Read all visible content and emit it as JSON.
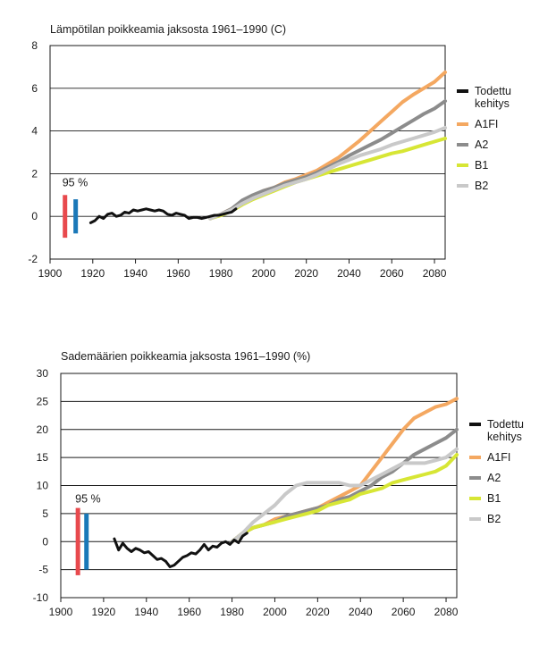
{
  "chart_data": [
    {
      "type": "line",
      "title": "Lämpötilan poikkeamia jaksosta 1961–1990 (C)",
      "xlabel": "",
      "ylabel": "",
      "xlim": [
        1900,
        2085
      ],
      "ylim": [
        -2,
        8
      ],
      "xticks": [
        1900,
        1920,
        1940,
        1960,
        1980,
        2000,
        2020,
        2040,
        2060,
        2080
      ],
      "yticks": [
        -2,
        0,
        2,
        4,
        6,
        8
      ],
      "grid": true,
      "confidence_label": "95 %",
      "confidence_bars": [
        {
          "x": 1907,
          "low": -1.0,
          "high": 1.0,
          "color": "#e8494d"
        },
        {
          "x": 1912,
          "low": -0.8,
          "high": 0.8,
          "color": "#1a78b8"
        }
      ],
      "series": [
        {
          "name": "Todettu kehitys",
          "color": "#111111",
          "width": 3,
          "x": [
            1919,
            1921,
            1923,
            1925,
            1927,
            1929,
            1931,
            1933,
            1935,
            1937,
            1939,
            1941,
            1943,
            1945,
            1947,
            1949,
            1951,
            1953,
            1955,
            1957,
            1959,
            1961,
            1963,
            1965,
            1967,
            1969,
            1971,
            1973,
            1975,
            1977,
            1979,
            1981,
            1983,
            1985,
            1987
          ],
          "y": [
            -0.3,
            -0.2,
            0.0,
            -0.1,
            0.1,
            0.15,
            0.0,
            0.05,
            0.2,
            0.15,
            0.3,
            0.25,
            0.3,
            0.35,
            0.3,
            0.25,
            0.3,
            0.25,
            0.1,
            0.05,
            0.15,
            0.1,
            0.05,
            -0.1,
            -0.05,
            -0.05,
            -0.1,
            -0.05,
            0.0,
            0.05,
            0.05,
            0.1,
            0.15,
            0.2,
            0.35
          ]
        },
        {
          "name": "A1FI",
          "color": "#f4a861",
          "width": 4,
          "x": [
            1975,
            1980,
            1985,
            1990,
            1995,
            2000,
            2005,
            2010,
            2015,
            2020,
            2025,
            2030,
            2035,
            2040,
            2045,
            2050,
            2055,
            2060,
            2065,
            2070,
            2075,
            2080,
            2085
          ],
          "y": [
            -0.1,
            0.1,
            0.35,
            0.7,
            0.95,
            1.2,
            1.35,
            1.6,
            1.75,
            1.95,
            2.15,
            2.45,
            2.75,
            3.15,
            3.55,
            4.0,
            4.45,
            4.9,
            5.35,
            5.7,
            6.0,
            6.3,
            6.75
          ]
        },
        {
          "name": "A2",
          "color": "#8c8c8c",
          "width": 4,
          "x": [
            1975,
            1980,
            1985,
            1990,
            1995,
            2000,
            2005,
            2010,
            2015,
            2020,
            2025,
            2030,
            2035,
            2040,
            2045,
            2050,
            2055,
            2060,
            2065,
            2070,
            2075,
            2080,
            2085
          ],
          "y": [
            -0.1,
            0.1,
            0.35,
            0.75,
            1.0,
            1.2,
            1.35,
            1.55,
            1.7,
            1.85,
            2.05,
            2.3,
            2.55,
            2.85,
            3.1,
            3.35,
            3.6,
            3.9,
            4.2,
            4.5,
            4.8,
            5.05,
            5.4
          ]
        },
        {
          "name": "B1",
          "color": "#d7e635",
          "width": 4,
          "x": [
            1975,
            1980,
            1985,
            1990,
            1995,
            2000,
            2005,
            2010,
            2015,
            2020,
            2025,
            2030,
            2035,
            2040,
            2045,
            2050,
            2055,
            2060,
            2065,
            2070,
            2075,
            2080,
            2085
          ],
          "y": [
            -0.1,
            0.05,
            0.25,
            0.55,
            0.8,
            1.0,
            1.2,
            1.4,
            1.6,
            1.75,
            1.9,
            2.05,
            2.2,
            2.35,
            2.5,
            2.65,
            2.8,
            2.95,
            3.05,
            3.2,
            3.35,
            3.5,
            3.65
          ]
        },
        {
          "name": "B2",
          "color": "#c9c9c9",
          "width": 4,
          "x": [
            1975,
            1980,
            1985,
            1990,
            1995,
            2000,
            2005,
            2010,
            2015,
            2020,
            2025,
            2030,
            2035,
            2040,
            2045,
            2050,
            2055,
            2060,
            2065,
            2070,
            2075,
            2080,
            2085
          ],
          "y": [
            -0.1,
            0.1,
            0.3,
            0.6,
            0.85,
            1.05,
            1.25,
            1.45,
            1.6,
            1.75,
            1.95,
            2.2,
            2.45,
            2.65,
            2.85,
            3.0,
            3.15,
            3.35,
            3.5,
            3.65,
            3.8,
            3.95,
            4.15
          ]
        }
      ]
    },
    {
      "type": "line",
      "title": "Sademäärien poikkeamia jaksosta 1961–1990 (%)",
      "xlabel": "",
      "ylabel": "",
      "xlim": [
        1900,
        2085
      ],
      "ylim": [
        -10,
        30
      ],
      "xticks": [
        1900,
        1920,
        1940,
        1960,
        1980,
        2000,
        2020,
        2040,
        2060,
        2080
      ],
      "yticks": [
        -10,
        -5,
        0,
        5,
        10,
        15,
        20,
        25,
        30
      ],
      "grid": true,
      "confidence_label": "95 %",
      "confidence_bars": [
        {
          "x": 1908,
          "low": -6.0,
          "high": 6.0,
          "color": "#e8494d"
        },
        {
          "x": 1912,
          "low": -5.0,
          "high": 5.0,
          "color": "#1a78b8"
        }
      ],
      "series": [
        {
          "name": "Todettu kehitys",
          "color": "#111111",
          "width": 3,
          "x": [
            1925,
            1927,
            1929,
            1931,
            1933,
            1935,
            1937,
            1939,
            1941,
            1943,
            1945,
            1947,
            1949,
            1951,
            1953,
            1955,
            1957,
            1959,
            1961,
            1963,
            1965,
            1967,
            1969,
            1971,
            1973,
            1975,
            1977,
            1979,
            1981,
            1983,
            1985,
            1987
          ],
          "y": [
            0.5,
            -1.5,
            -0.3,
            -1.2,
            -1.8,
            -1.2,
            -1.5,
            -2.0,
            -1.8,
            -2.5,
            -3.2,
            -3.0,
            -3.5,
            -4.5,
            -4.2,
            -3.5,
            -2.8,
            -2.5,
            -2.0,
            -2.2,
            -1.5,
            -0.5,
            -1.5,
            -0.8,
            -1.0,
            -0.3,
            0.0,
            -0.5,
            0.3,
            -0.2,
            1.0,
            1.5
          ]
        },
        {
          "name": "A1FI",
          "color": "#f4a861",
          "width": 4,
          "x": [
            1980,
            1985,
            1990,
            1995,
            2000,
            2005,
            2010,
            2015,
            2020,
            2025,
            2030,
            2035,
            2040,
            2045,
            2050,
            2055,
            2060,
            2065,
            2070,
            2075,
            2080,
            2085
          ],
          "y": [
            0.0,
            1.5,
            2.5,
            3.0,
            4.0,
            4.5,
            5.0,
            5.5,
            6.0,
            7.0,
            8.0,
            9.0,
            10.0,
            12.5,
            15.0,
            17.5,
            20.0,
            22.0,
            23.0,
            24.0,
            24.5,
            25.5
          ]
        },
        {
          "name": "A2",
          "color": "#8c8c8c",
          "width": 4,
          "x": [
            1980,
            1985,
            1990,
            1995,
            2000,
            2005,
            2010,
            2015,
            2020,
            2025,
            2030,
            2035,
            2040,
            2045,
            2050,
            2055,
            2060,
            2065,
            2070,
            2075,
            2080,
            2085
          ],
          "y": [
            0.0,
            1.5,
            2.5,
            3.0,
            3.5,
            4.5,
            5.0,
            5.5,
            6.0,
            6.5,
            7.5,
            8.0,
            9.0,
            10.0,
            11.5,
            12.5,
            14.0,
            15.5,
            16.5,
            17.5,
            18.5,
            20.0
          ]
        },
        {
          "name": "B1",
          "color": "#d7e635",
          "width": 4,
          "x": [
            1980,
            1985,
            1990,
            1995,
            2000,
            2005,
            2010,
            2015,
            2020,
            2025,
            2030,
            2035,
            2040,
            2045,
            2050,
            2055,
            2060,
            2065,
            2070,
            2075,
            2080,
            2085
          ],
          "y": [
            0.0,
            1.5,
            2.5,
            3.0,
            3.5,
            4.0,
            4.5,
            5.0,
            5.5,
            6.5,
            7.0,
            7.5,
            8.5,
            9.0,
            9.5,
            10.5,
            11.0,
            11.5,
            12.0,
            12.5,
            13.5,
            15.5
          ]
        },
        {
          "name": "B2",
          "color": "#c9c9c9",
          "width": 4,
          "x": [
            1980,
            1985,
            1990,
            1995,
            2000,
            2005,
            2010,
            2015,
            2020,
            2025,
            2030,
            2035,
            2040,
            2045,
            2050,
            2055,
            2060,
            2065,
            2070,
            2075,
            2080,
            2085
          ],
          "y": [
            0.0,
            1.5,
            3.5,
            5.0,
            6.5,
            8.5,
            10.0,
            10.5,
            10.5,
            10.5,
            10.5,
            10.0,
            10.0,
            11.0,
            12.0,
            13.0,
            14.0,
            14.0,
            14.0,
            14.5,
            15.0,
            16.5
          ]
        }
      ]
    }
  ],
  "legend": {
    "items": [
      {
        "label": "Todettu\nkehitys",
        "color": "#111111"
      },
      {
        "label": "A1FI",
        "color": "#f4a861"
      },
      {
        "label": "A2",
        "color": "#8c8c8c"
      },
      {
        "label": "B1",
        "color": "#d7e635"
      },
      {
        "label": "B2",
        "color": "#c9c9c9"
      }
    ]
  }
}
